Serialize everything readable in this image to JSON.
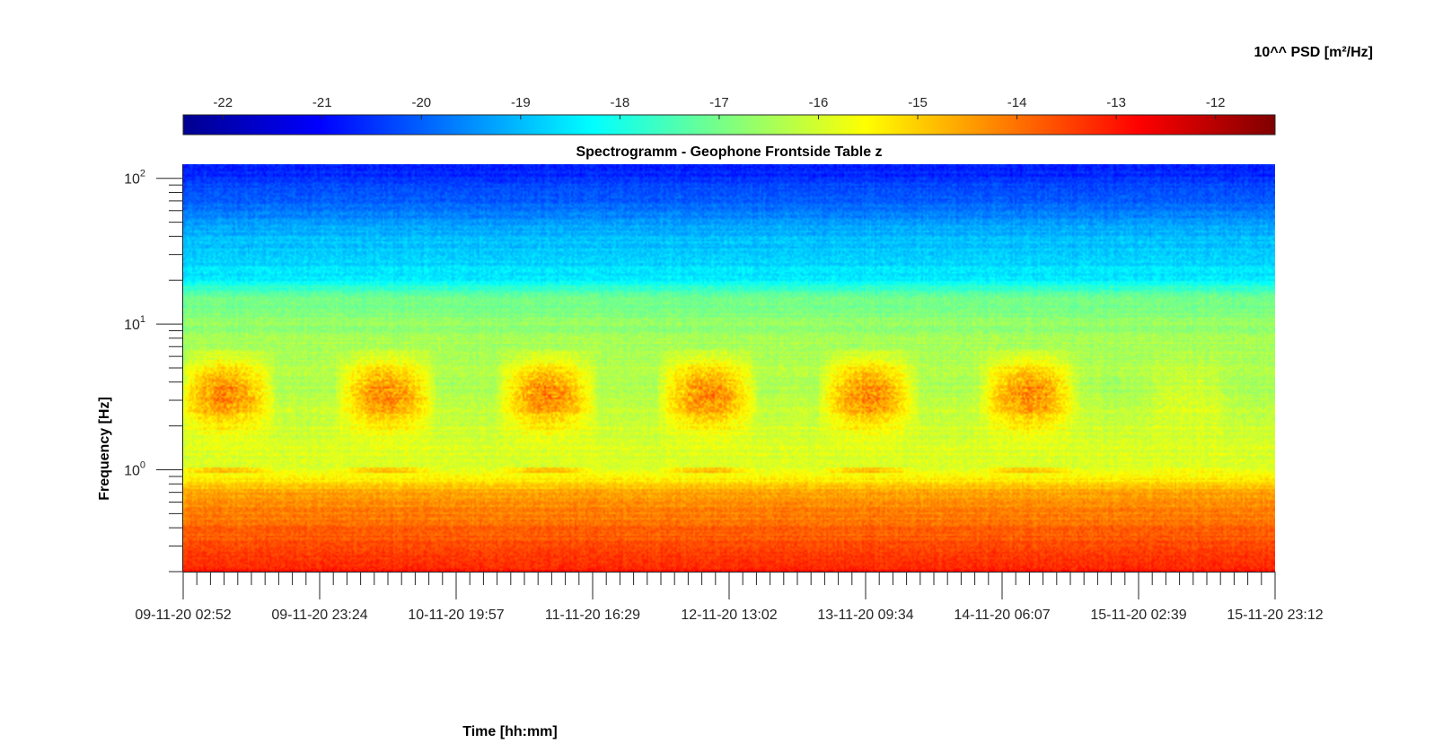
{
  "chart_data": {
    "type": "heatmap",
    "title": "Spectrogramm - Geophone Frontside Table z",
    "xlabel": "Time [hh:mm]",
    "ylabel": "Frequency [Hz]",
    "y_scale": "log",
    "y_ticks": [
      {
        "value": 100,
        "base": "10",
        "exp": "2"
      },
      {
        "value": 10,
        "base": "10",
        "exp": "1"
      },
      {
        "value": 1,
        "base": "10",
        "exp": "0"
      }
    ],
    "ylim": [
      0.2,
      125
    ],
    "x_ticks": [
      "09-11-20 02:52",
      "09-11-20 23:24",
      "10-11-20 19:57",
      "11-11-20 16:29",
      "12-11-20 13:02",
      "13-11-20 09:34",
      "14-11-20 06:07",
      "15-11-20 02:39",
      "15-11-20 23:12"
    ],
    "colorbar": {
      "label": "10^^ PSD [m²/Hz]",
      "ticks": [
        "-22",
        "-21",
        "-20",
        "-19",
        "-18",
        "-17",
        "-16",
        "-15",
        "-14",
        "-13",
        "-12"
      ],
      "range": [
        -22.4,
        -11.4
      ],
      "colormap": "jet",
      "placement": "top"
    },
    "daily_activity_band_hz": [
      1.5,
      6
    ],
    "baseline_log10_psd_by_frequency": [
      {
        "hz": 125,
        "log10_psd": -20.8
      },
      {
        "hz": 80,
        "log10_psd": -20.2
      },
      {
        "hz": 40,
        "log10_psd": -19.0
      },
      {
        "hz": 20,
        "log10_psd": -18.5
      },
      {
        "hz": 16,
        "log10_psd": -17.2
      },
      {
        "hz": 10,
        "log10_psd": -16.7
      },
      {
        "hz": 5,
        "log10_psd": -16.2
      },
      {
        "hz": 2.5,
        "log10_psd": -16.0
      },
      {
        "hz": 1,
        "log10_psd": -15.9
      },
      {
        "hz": 0.7,
        "log10_psd": -14.6
      },
      {
        "hz": 0.4,
        "log10_psd": -13.9
      },
      {
        "hz": 0.2,
        "log10_psd": -13.0
      }
    ]
  }
}
